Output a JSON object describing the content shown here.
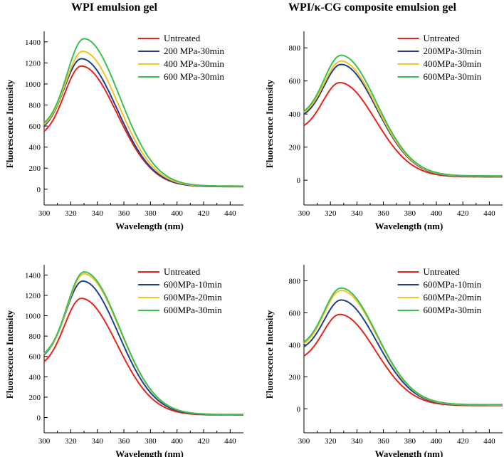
{
  "titles": {
    "left": "WPI emulsion gel",
    "right": "WPI/κ-CG composite emulsion gel"
  },
  "colors": {
    "red": "#e8221c",
    "blue": "#1f3f92",
    "yellow": "#f6c325",
    "green": "#3cbf54"
  },
  "chart_data": [
    {
      "type": "line",
      "panel": "top-left",
      "xlabel": "Wavelength (nm)",
      "ylabel": "Fluorescence Intensity",
      "xlim": [
        300,
        450
      ],
      "ylim": [
        -150,
        1500
      ],
      "xticks": [
        300,
        320,
        340,
        360,
        380,
        400,
        420,
        440
      ],
      "yticks": [
        0,
        200,
        400,
        600,
        800,
        1000,
        1200,
        1400
      ],
      "legend_position": "top-right",
      "series": [
        {
          "name": "Untreated",
          "color": "#e8221c",
          "start": 490,
          "peak": 1170,
          "peak_x": 328,
          "tail": 25
        },
        {
          "name": "200 MPa-30min",
          "color": "#1f3f92",
          "start": 540,
          "peak": 1240,
          "peak_x": 328,
          "tail": 25
        },
        {
          "name": "400 MPa-30min",
          "color": "#f6c325",
          "start": 560,
          "peak": 1310,
          "peak_x": 329,
          "tail": 28
        },
        {
          "name": "600 MPa-30min",
          "color": "#3cbf54",
          "start": 580,
          "peak": 1430,
          "peak_x": 330,
          "tail": 30
        }
      ]
    },
    {
      "type": "line",
      "panel": "top-right",
      "xlabel": "Wavelength (nm)",
      "ylabel": "Fluorescence Intensity",
      "xlim": [
        300,
        450
      ],
      "ylim": [
        -150,
        900
      ],
      "xticks": [
        300,
        320,
        340,
        360,
        380,
        400,
        420,
        440
      ],
      "yticks": [
        0,
        200,
        400,
        600,
        800
      ],
      "legend_position": "top-right",
      "series": [
        {
          "name": "Untreated",
          "color": "#e8221c",
          "start": 300,
          "peak": 590,
          "peak_x": 327,
          "tail": 20
        },
        {
          "name": "200MPa-30min",
          "color": "#1f3f92",
          "start": 370,
          "peak": 700,
          "peak_x": 328,
          "tail": 22
        },
        {
          "name": "400MPa-30min",
          "color": "#f6c325",
          "start": 380,
          "peak": 720,
          "peak_x": 328,
          "tail": 24
        },
        {
          "name": "600MPa-30min",
          "color": "#3cbf54",
          "start": 385,
          "peak": 755,
          "peak_x": 328,
          "tail": 26
        }
      ]
    },
    {
      "type": "line",
      "panel": "bottom-left",
      "xlabel": "Wavelength (nm)",
      "ylabel": "Fluorescence Intensity",
      "xlim": [
        300,
        450
      ],
      "ylim": [
        -150,
        1500
      ],
      "xticks": [
        300,
        320,
        340,
        360,
        380,
        400,
        420,
        440
      ],
      "yticks": [
        0,
        200,
        400,
        600,
        800,
        1000,
        1200,
        1400
      ],
      "legend_position": "top-right",
      "series": [
        {
          "name": "Untreated",
          "color": "#e8221c",
          "start": 490,
          "peak": 1170,
          "peak_x": 328,
          "tail": 25
        },
        {
          "name": "600MPa-10min",
          "color": "#1f3f92",
          "start": 560,
          "peak": 1340,
          "peak_x": 329,
          "tail": 28
        },
        {
          "name": "600MPa-20min",
          "color": "#f6c325",
          "start": 575,
          "peak": 1410,
          "peak_x": 330,
          "tail": 30
        },
        {
          "name": "600MPa-30min",
          "color": "#3cbf54",
          "start": 580,
          "peak": 1430,
          "peak_x": 330,
          "tail": 30
        }
      ]
    },
    {
      "type": "line",
      "panel": "bottom-right",
      "xlabel": "Wavelength (nm)",
      "ylabel": "Fluorescence Intensity",
      "xlim": [
        300,
        450
      ],
      "ylim": [
        -150,
        900
      ],
      "xticks": [
        300,
        320,
        340,
        360,
        380,
        400,
        420,
        440
      ],
      "yticks": [
        0,
        200,
        400,
        600,
        800
      ],
      "legend_position": "top-right",
      "series": [
        {
          "name": "Untreated",
          "color": "#e8221c",
          "start": 300,
          "peak": 590,
          "peak_x": 327,
          "tail": 20
        },
        {
          "name": "600MPa-10min",
          "color": "#1f3f92",
          "start": 360,
          "peak": 680,
          "peak_x": 328,
          "tail": 22
        },
        {
          "name": "600MPa-20min",
          "color": "#f6c325",
          "start": 375,
          "peak": 740,
          "peak_x": 328,
          "tail": 24
        },
        {
          "name": "600MPa-30min",
          "color": "#3cbf54",
          "start": 385,
          "peak": 755,
          "peak_x": 328,
          "tail": 26
        }
      ]
    }
  ]
}
